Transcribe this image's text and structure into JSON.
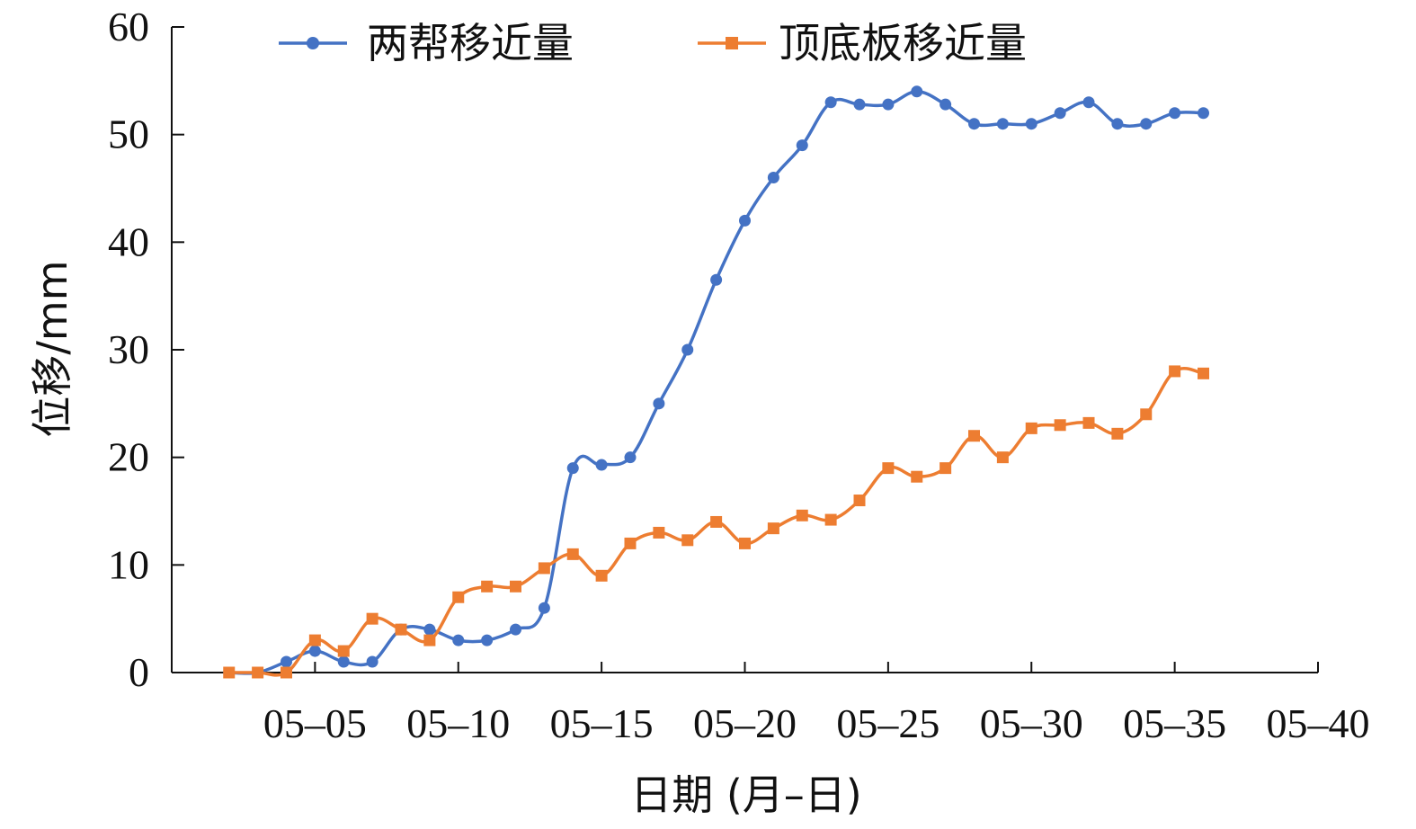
{
  "chart_data": {
    "type": "line",
    "xlabel": "日期 (月–日)",
    "ylabel": "位移/mm",
    "ylim": [
      0,
      60
    ],
    "yticks": [
      0,
      10,
      20,
      30,
      40,
      50,
      60
    ],
    "xlim": [
      0,
      40
    ],
    "xticks": [
      5,
      10,
      15,
      20,
      25,
      30,
      35,
      40
    ],
    "xtick_labels": [
      "05–05",
      "05–10",
      "05–15",
      "05–20",
      "05–25",
      "05–30",
      "05–35",
      "05–40"
    ],
    "legend": "top",
    "grid": false,
    "series": [
      {
        "name": "两帮移近量",
        "color": "#4472c4",
        "marker": "circle",
        "x": [
          2,
          3,
          4,
          5,
          6,
          7,
          8,
          9,
          10,
          11,
          12,
          13,
          14,
          15,
          16,
          17,
          18,
          19,
          20,
          21,
          22,
          23,
          24,
          25,
          26,
          27,
          28,
          29,
          30,
          31,
          32,
          33,
          34,
          35,
          36
        ],
        "values": [
          0,
          0,
          1,
          2,
          1,
          1,
          4,
          4,
          3,
          3,
          4,
          6,
          19,
          19.3,
          20,
          25,
          30,
          36.5,
          42,
          46,
          49,
          53,
          52.8,
          52.8,
          54,
          52.8,
          51,
          51,
          51,
          52,
          53,
          51,
          51,
          52,
          52
        ]
      },
      {
        "name": "顶底板移近量",
        "color": "#ed7d31",
        "marker": "square",
        "x": [
          2,
          3,
          4,
          5,
          6,
          7,
          8,
          9,
          10,
          11,
          12,
          13,
          14,
          15,
          16,
          17,
          18,
          19,
          20,
          21,
          22,
          23,
          24,
          25,
          26,
          27,
          28,
          29,
          30,
          31,
          32,
          33,
          34,
          35,
          36
        ],
        "values": [
          0,
          0,
          0,
          3,
          2,
          5,
          4,
          3,
          7,
          8,
          8,
          9.7,
          11,
          9,
          12,
          13,
          12.3,
          14,
          12,
          13.4,
          14.6,
          14.2,
          16,
          19,
          18.2,
          19,
          22,
          20,
          22.7,
          23,
          23.2,
          22.2,
          24,
          28,
          27.8
        ]
      }
    ]
  }
}
